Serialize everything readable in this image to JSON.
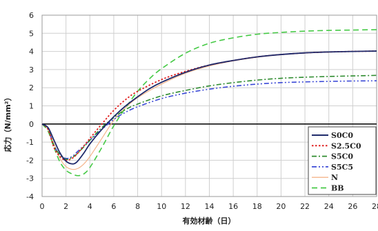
{
  "chart_data": {
    "type": "line",
    "title": "",
    "xlabel": "有効材齢（日）",
    "ylabel": "応力（N/mm²）",
    "xlim": [
      0,
      28
    ],
    "ylim": [
      -4,
      6
    ],
    "xticks": [
      0,
      2,
      4,
      6,
      8,
      10,
      12,
      14,
      16,
      18,
      20,
      22,
      24,
      26,
      28
    ],
    "xtick_labels": [
      "0",
      "2",
      "4",
      "6",
      "8",
      "10",
      "12",
      "14",
      "16",
      "18",
      "20",
      "22",
      "24",
      "26",
      "28"
    ],
    "yticks": [
      -4,
      -3,
      -2,
      -1,
      0,
      1,
      2,
      3,
      4,
      5,
      6
    ],
    "ytick_labels": [
      "-4",
      "-3",
      "-2",
      "-1",
      "0",
      "1",
      "2",
      "3",
      "4",
      "5",
      "6"
    ],
    "grid": true,
    "legend_position": "right",
    "series": [
      {
        "name": "S0C0",
        "color": "#1f2a6b",
        "dash": "solid",
        "x": [
          0,
          0.5,
          1,
          1.5,
          2,
          2.5,
          2.9,
          3.5,
          4,
          5,
          6,
          7,
          8,
          9,
          10,
          12,
          14,
          16,
          18,
          20,
          22,
          24,
          26,
          28
        ],
        "y": [
          0,
          -0.2,
          -0.9,
          -1.6,
          -2.05,
          -2.2,
          -2.1,
          -1.6,
          -1.1,
          -0.3,
          0.4,
          1.0,
          1.5,
          1.95,
          2.3,
          2.85,
          3.25,
          3.5,
          3.7,
          3.83,
          3.92,
          3.97,
          4.0,
          4.02
        ]
      },
      {
        "name": "S2.5C0",
        "color": "#e02020",
        "dash": "dotted",
        "x": [
          0,
          0.5,
          1,
          1.5,
          2,
          2.5,
          3,
          4,
          5,
          6,
          7,
          8,
          10,
          12,
          14,
          16,
          18,
          20,
          22,
          24,
          26,
          28
        ],
        "y": [
          0,
          -0.3,
          -1.3,
          -1.8,
          -2.0,
          -1.9,
          -1.6,
          -0.8,
          0.0,
          0.75,
          1.35,
          1.8,
          2.45,
          2.9,
          3.25,
          3.5,
          3.7,
          3.83,
          3.92,
          3.97,
          4.0,
          4.02
        ]
      },
      {
        "name": "S5C0",
        "color": "#2e8b2e",
        "dash": "dashdot",
        "x": [
          0,
          0.5,
          1,
          1.5,
          2,
          2.5,
          3,
          4,
          5,
          6,
          7,
          8,
          10,
          12,
          14,
          16,
          18,
          20,
          22,
          24,
          26,
          28
        ],
        "y": [
          0,
          -0.3,
          -1.2,
          -1.7,
          -1.95,
          -1.85,
          -1.6,
          -0.9,
          -0.2,
          0.35,
          0.8,
          1.1,
          1.55,
          1.85,
          2.1,
          2.28,
          2.42,
          2.52,
          2.58,
          2.62,
          2.65,
          2.68
        ]
      },
      {
        "name": "S5C5",
        "color": "#3a48d6",
        "dash": "dashdotdot",
        "x": [
          0,
          0.5,
          1,
          1.5,
          2,
          2.5,
          3,
          4,
          5,
          6,
          7,
          8,
          10,
          12,
          14,
          16,
          18,
          20,
          22,
          24,
          26,
          28
        ],
        "y": [
          0,
          -0.3,
          -1.2,
          -1.7,
          -1.9,
          -1.8,
          -1.5,
          -0.9,
          -0.3,
          0.25,
          0.65,
          0.95,
          1.4,
          1.7,
          1.92,
          2.08,
          2.2,
          2.28,
          2.32,
          2.35,
          2.37,
          2.38
        ]
      },
      {
        "name": "N",
        "color": "#f5b48a",
        "dash": "solid",
        "x": [
          0,
          0.5,
          1,
          1.5,
          2,
          2.5,
          3,
          3.5,
          4,
          5,
          6,
          7,
          8,
          10,
          12,
          14,
          16,
          18,
          20,
          22,
          24,
          26,
          28
        ],
        "y": [
          0,
          -0.3,
          -1.1,
          -1.9,
          -2.35,
          -2.5,
          -2.45,
          -2.2,
          -1.8,
          -0.8,
          0.2,
          0.9,
          1.45,
          2.2,
          2.8,
          3.2,
          3.48,
          3.68,
          3.82,
          3.91,
          3.96,
          4.0,
          4.02
        ]
      },
      {
        "name": "BB",
        "color": "#44c944",
        "dash": "dashed",
        "x": [
          0,
          0.5,
          1,
          1.5,
          2,
          2.5,
          3,
          3.5,
          4,
          5,
          6,
          7,
          8,
          9,
          10,
          12,
          14,
          16,
          18,
          20,
          22,
          24,
          26,
          28
        ],
        "y": [
          0,
          -0.4,
          -1.3,
          -2.1,
          -2.55,
          -2.75,
          -2.85,
          -2.75,
          -2.4,
          -1.3,
          -0.1,
          0.9,
          1.8,
          2.5,
          3.05,
          3.9,
          4.45,
          4.75,
          4.95,
          5.05,
          5.12,
          5.16,
          5.18,
          5.2
        ]
      }
    ]
  }
}
